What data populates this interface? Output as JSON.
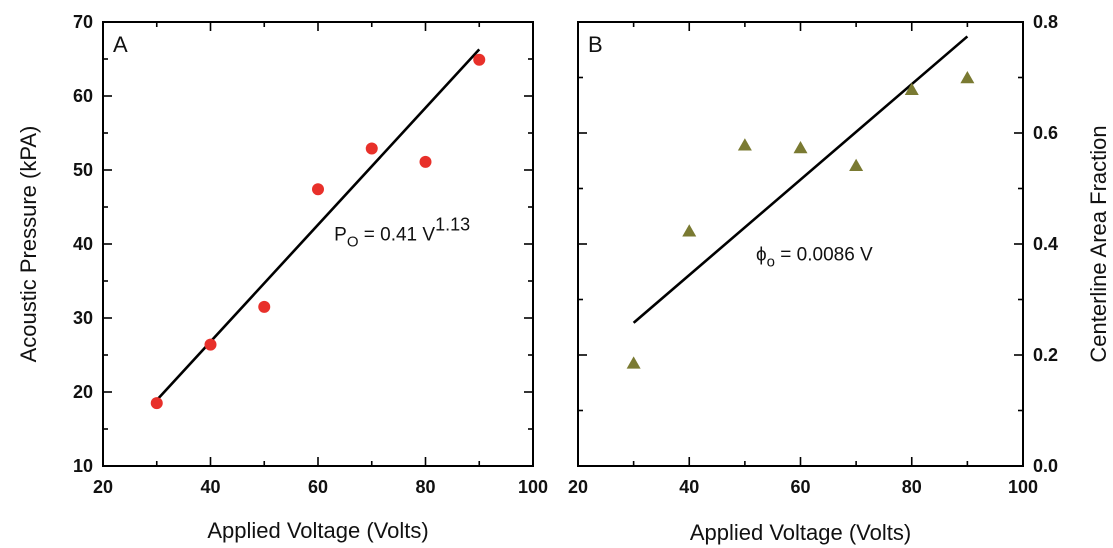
{
  "chart_data": [
    {
      "type": "scatter",
      "panel_label": "A",
      "xlabel": "Applied Voltage (Volts)",
      "ylabel": "Acoustic Pressure (kPA)",
      "xlim": [
        20,
        100
      ],
      "ylim": [
        10,
        70
      ],
      "xticks": [
        20,
        40,
        60,
        80,
        100
      ],
      "yticks": [
        10,
        20,
        30,
        40,
        50,
        60,
        70
      ],
      "grid": false,
      "marker": "circle",
      "marker_color": "#e8302a",
      "x": [
        30,
        40,
        50,
        60,
        70,
        80,
        90
      ],
      "y": [
        18.5,
        26.4,
        31.5,
        47.4,
        52.9,
        51.1,
        64.9
      ],
      "fit": {
        "x": [
          30,
          90
        ],
        "y": [
          18.9,
          66.3
        ],
        "annotation": {
          "lhs": "P",
          "lhs_sub": "O",
          "rhs": " = 0.41 V",
          "rhs_sup": "1.13",
          "at": [
            63,
            40.5
          ]
        }
      }
    },
    {
      "type": "scatter",
      "panel_label": "B",
      "xlabel": "Applied Voltage (Volts)",
      "ylabel": "Centerline Area Fraction",
      "ylabel_side": "right",
      "xlim": [
        20,
        100
      ],
      "ylim": [
        0.0,
        0.8
      ],
      "xticks": [
        20,
        40,
        60,
        80,
        100
      ],
      "yticks": [
        0.0,
        0.2,
        0.4,
        0.6,
        0.8
      ],
      "ytick_labels": [
        "0.0",
        "0.2",
        "0.4",
        "0.6",
        "0.8"
      ],
      "grid": false,
      "marker": "triangle",
      "marker_color": "#7a7a32",
      "x": [
        30,
        40,
        50,
        60,
        70,
        80,
        90
      ],
      "y": [
        0.185,
        0.423,
        0.578,
        0.573,
        0.541,
        0.678,
        0.699
      ],
      "fit": {
        "x": [
          30,
          90
        ],
        "y": [
          0.258,
          0.774
        ],
        "annotation": {
          "lhs": "ϕ",
          "lhs_sub": "o",
          "rhs": " = 0.0086 V",
          "rhs_sup": "",
          "at": [
            52,
            0.37
          ]
        }
      }
    }
  ]
}
